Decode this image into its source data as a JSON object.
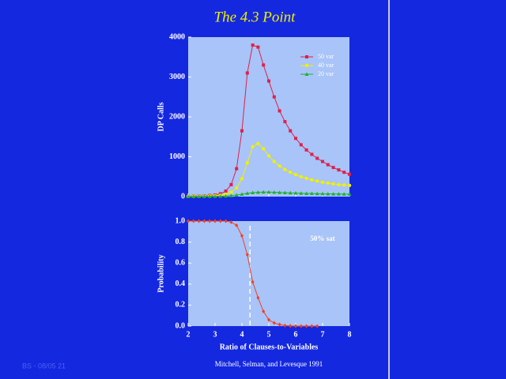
{
  "slide": {
    "title": "The 4.3 Point",
    "citation": "Mitchell, Selman, and Levesque 1991",
    "footer": "BS - 08/05  21"
  },
  "chart_data": [
    {
      "type": "line",
      "ylabel": "DP Calls",
      "x": [
        2.0,
        2.2,
        2.4,
        2.6,
        2.8,
        3.0,
        3.2,
        3.4,
        3.6,
        3.8,
        4.0,
        4.2,
        4.4,
        4.6,
        4.8,
        5.0,
        5.2,
        5.4,
        5.6,
        5.8,
        6.0,
        6.2,
        6.4,
        6.6,
        6.8,
        7.0,
        7.2,
        7.4,
        7.6,
        7.8,
        8.0
      ],
      "series": [
        {
          "name": "50 var",
          "color": "#e0204a",
          "marker": "square",
          "values": [
            10,
            12,
            15,
            20,
            28,
            40,
            70,
            140,
            300,
            700,
            1650,
            3100,
            3800,
            3750,
            3300,
            2900,
            2500,
            2150,
            1880,
            1650,
            1460,
            1300,
            1170,
            1060,
            960,
            880,
            800,
            730,
            670,
            610,
            560
          ]
        },
        {
          "name": "40 var",
          "color": "#f0f000",
          "marker": "circle",
          "values": [
            5,
            6,
            8,
            10,
            14,
            20,
            30,
            55,
            110,
            220,
            450,
            850,
            1250,
            1330,
            1200,
            1020,
            880,
            770,
            680,
            610,
            550,
            500,
            460,
            420,
            390,
            360,
            340,
            320,
            300,
            290,
            280
          ]
        },
        {
          "name": "20 var",
          "color": "#20b030",
          "marker": "triangle",
          "values": [
            2,
            3,
            4,
            5,
            6,
            8,
            10,
            15,
            25,
            40,
            60,
            85,
            100,
            110,
            115,
            115,
            110,
            105,
            100,
            95,
            90,
            85,
            80,
            78,
            75,
            72,
            70,
            68,
            66,
            64,
            62
          ]
        }
      ],
      "xlim": [
        2,
        8
      ],
      "xticks": [
        2,
        3,
        4,
        5,
        6,
        7,
        8
      ],
      "ylim": [
        0,
        4000
      ],
      "yticks": [
        0,
        1000,
        2000,
        3000,
        4000
      ]
    },
    {
      "type": "line",
      "ylabel": "Probability",
      "xlabel": "Ratio of Clauses-to-Variables",
      "annotation": "50% sat",
      "reference_x": 4.3,
      "x": [
        2.0,
        2.2,
        2.4,
        2.6,
        2.8,
        3.0,
        3.2,
        3.4,
        3.6,
        3.8,
        4.0,
        4.2,
        4.4,
        4.6,
        4.8,
        5.0,
        5.2,
        5.4,
        5.6,
        5.8,
        6.0,
        6.2,
        6.4,
        6.6,
        6.8
      ],
      "series": [
        {
          "color": "#f04020",
          "marker": "diamond",
          "values": [
            1,
            1,
            1,
            1,
            1,
            1,
            1,
            1,
            0.99,
            0.96,
            0.86,
            0.68,
            0.42,
            0.27,
            0.14,
            0.06,
            0.03,
            0.015,
            0.005,
            0.002,
            0,
            0,
            0,
            0,
            0
          ]
        }
      ],
      "xlim": [
        2,
        8
      ],
      "xticks": [
        2,
        3,
        4,
        5,
        6,
        7,
        8
      ],
      "ylim": [
        0,
        1
      ],
      "yticks": [
        {
          "value": 0,
          "label": "0.0"
        },
        0.2,
        0.4,
        0.6,
        0.8,
        {
          "value": 1,
          "label": "1.0"
        }
      ]
    }
  ]
}
